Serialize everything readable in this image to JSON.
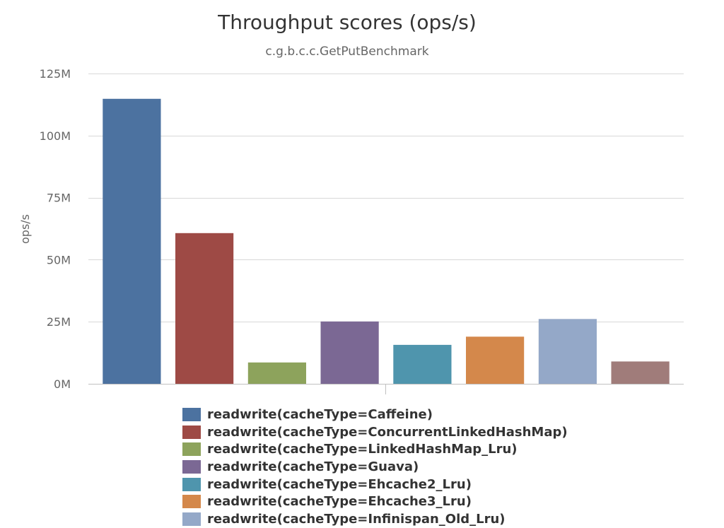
{
  "chart_data": {
    "type": "bar",
    "title": "Throughput scores (ops/s)",
    "subtitle": "c.g.b.c.c.GetPutBenchmark",
    "ylabel": "ops/s",
    "ylim": [
      0,
      125000000
    ],
    "yticks": [
      {
        "value": 0,
        "label": "0M"
      },
      {
        "value": 25000000,
        "label": "25M"
      },
      {
        "value": 50000000,
        "label": "50M"
      },
      {
        "value": 75000000,
        "label": "75M"
      },
      {
        "value": 100000000,
        "label": "100M"
      },
      {
        "value": 125000000,
        "label": "125M"
      }
    ],
    "grid": true,
    "legend_position": "bottom",
    "series": [
      {
        "name": "readwrite(cacheType=Caffeine)",
        "value": 114800000,
        "color": "#4c72a0"
      },
      {
        "name": "readwrite(cacheType=ConcurrentLinkedHashMap)",
        "value": 60700000,
        "color": "#9e4a45"
      },
      {
        "name": "readwrite(cacheType=LinkedHashMap_Lru)",
        "value": 8600000,
        "color": "#8da35c"
      },
      {
        "name": "readwrite(cacheType=Guava)",
        "value": 25100000,
        "color": "#7b6894"
      },
      {
        "name": "readwrite(cacheType=Ehcache2_Lru)",
        "value": 15700000,
        "color": "#4f95ad"
      },
      {
        "name": "readwrite(cacheType=Ehcache3_Lru)",
        "value": 19000000,
        "color": "#d4884b"
      },
      {
        "name": "readwrite(cacheType=Infinispan_Old_Lru)",
        "value": 26100000,
        "color": "#94a8c8"
      },
      {
        "name": "",
        "value": 9000000,
        "color": "#a07c7a"
      }
    ]
  }
}
